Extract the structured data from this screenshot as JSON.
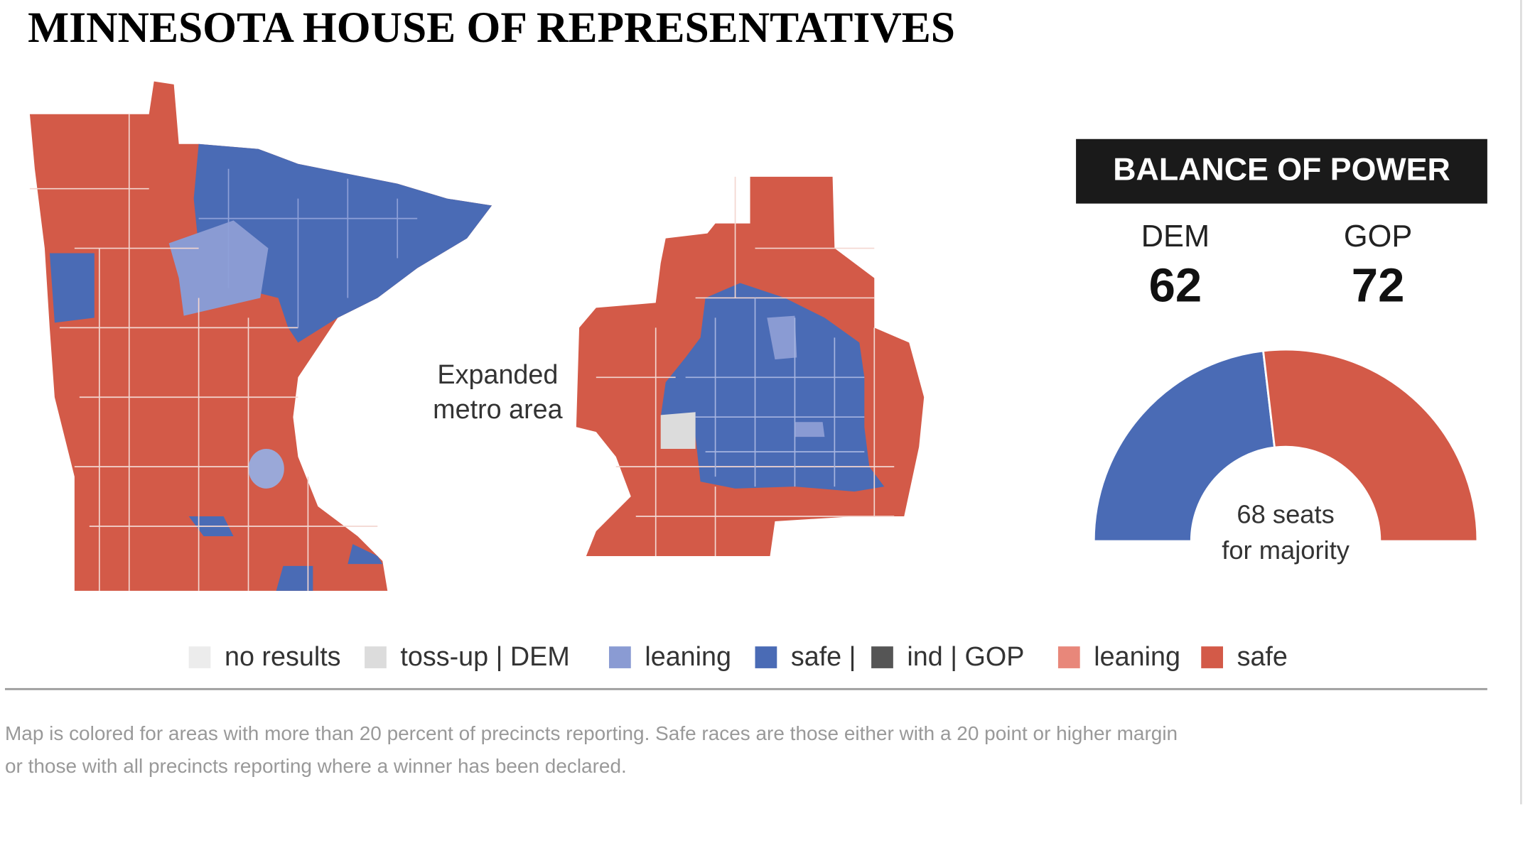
{
  "header": {
    "title": "MINNESOTA HOUSE OF REPRESENTATIVES"
  },
  "map": {
    "metro_label": [
      "Expanded",
      "metro area"
    ]
  },
  "balance": {
    "title": "BALANCE OF POWER",
    "parties": [
      {
        "name": "DEM",
        "seats": 62,
        "color": "#4a6bb5"
      },
      {
        "name": "GOP",
        "seats": 72,
        "color": "#d35a48"
      }
    ],
    "majority": [
      "68 seats",
      "for majority"
    ]
  },
  "legend": [
    {
      "label": "no results",
      "color": "#ececec"
    },
    {
      "label": "toss-up | DEM",
      "color": "#dcdcdc"
    },
    {
      "label": "leaning",
      "color": "#8a9bd3"
    },
    {
      "label": "safe |",
      "color": "#4a6bb5"
    },
    {
      "label": "ind | GOP",
      "color": "#555555"
    },
    {
      "label": "leaning",
      "color": "#e8877a"
    },
    {
      "label": "safe",
      "color": "#d35a48"
    }
  ],
  "footnote": [
    "Map is colored for areas with more than 20 percent of precincts reporting. Safe races are those either with a 20 point or higher margin",
    "or those with all precincts reporting where a winner has been declared."
  ]
}
